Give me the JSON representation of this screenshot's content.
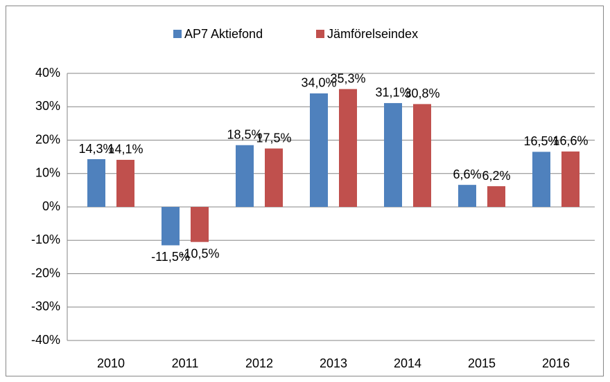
{
  "chart_data": {
    "type": "bar",
    "categories": [
      "2010",
      "2011",
      "2012",
      "2013",
      "2014",
      "2015",
      "2016"
    ],
    "series": [
      {
        "name": "AP7 Aktiefond",
        "color": "#4f81bd",
        "values": [
          14.3,
          -11.5,
          18.5,
          34.0,
          31.1,
          6.6,
          16.5
        ],
        "value_labels": [
          "14,3%",
          "-11,5%",
          "18,5%",
          "34,0%",
          "31,1%",
          "6,6%",
          "16,5%"
        ]
      },
      {
        "name": "Jämförelseindex",
        "color": "#c0504d",
        "values": [
          14.1,
          -10.5,
          17.5,
          35.3,
          30.8,
          6.2,
          16.6
        ],
        "value_labels": [
          "14,1%",
          "-10,5%",
          "17,5%",
          "35,3%",
          "30,8%",
          "6,2%",
          "16,6%"
        ]
      }
    ],
    "ylim": [
      -40,
      40
    ],
    "yticks": [
      {
        "value": -40,
        "label": "-40%"
      },
      {
        "value": -30,
        "label": "-30%"
      },
      {
        "value": -20,
        "label": "-20%"
      },
      {
        "value": -10,
        "label": "-10%"
      },
      {
        "value": 0,
        "label": "0%"
      },
      {
        "value": 10,
        "label": "10%"
      },
      {
        "value": 20,
        "label": "20%"
      },
      {
        "value": 30,
        "label": "30%"
      },
      {
        "value": 40,
        "label": "40%"
      }
    ],
    "grid": true,
    "legend": "top"
  }
}
